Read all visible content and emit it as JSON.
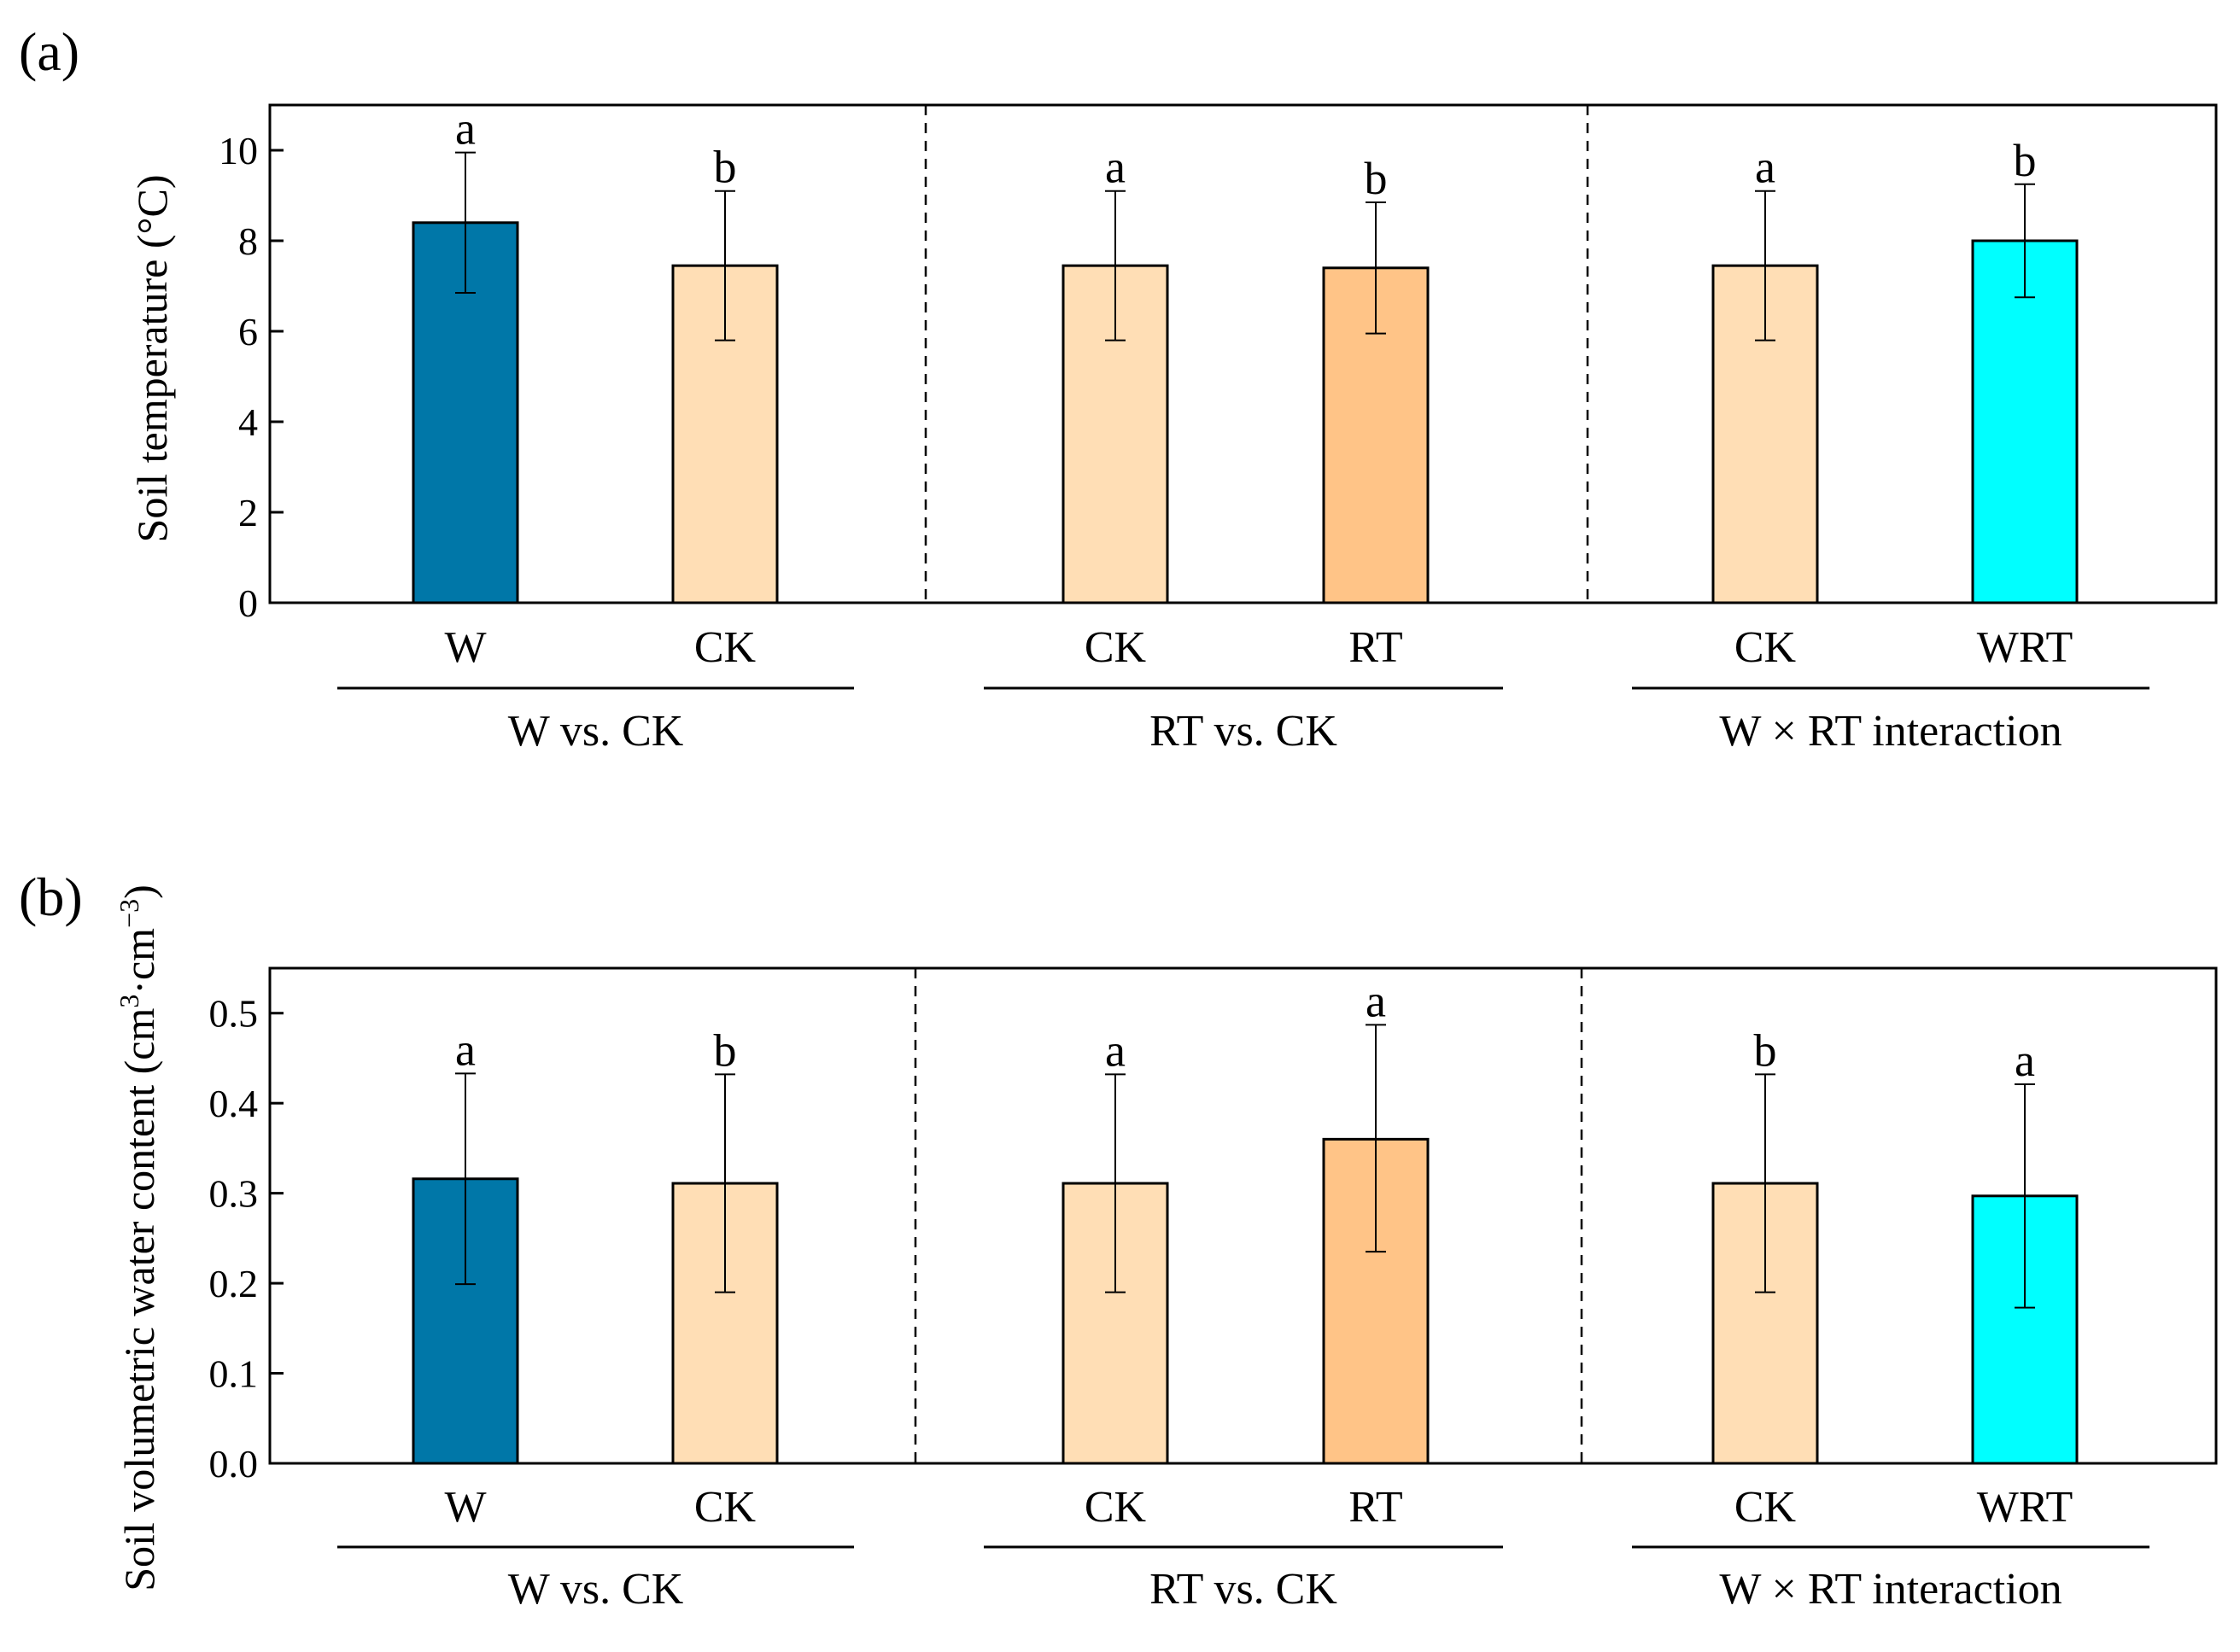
{
  "colors": {
    "W": "#0077A8",
    "CK": "#FFDEB5",
    "RT": "#FFC487",
    "WRT": "#00FFFF",
    "line": "#000000"
  },
  "chart_data": [
    {
      "panel_label": "(a)",
      "type": "bar",
      "ylabel": "Soil temperature (°C)",
      "ylim": [
        0,
        11
      ],
      "yticks": [
        0,
        2,
        4,
        6,
        8,
        10
      ],
      "ytick_labels": [
        "0",
        "2",
        "4",
        "6",
        "8",
        "10"
      ],
      "groups": [
        {
          "name": "W vs. CK",
          "bars": [
            {
              "label": "W",
              "value": 8.4,
              "err_low": 6.85,
              "err_high": 9.95,
              "letter": "a",
              "color_key": "W"
            },
            {
              "label": "CK",
              "value": 7.45,
              "err_low": 5.8,
              "err_high": 9.1,
              "letter": "b",
              "color_key": "CK"
            }
          ]
        },
        {
          "name": "RT vs. CK",
          "bars": [
            {
              "label": "CK",
              "value": 7.45,
              "err_low": 5.8,
              "err_high": 9.1,
              "letter": "a",
              "color_key": "CK"
            },
            {
              "label": "RT",
              "value": 7.4,
              "err_low": 5.95,
              "err_high": 8.85,
              "letter": "b",
              "color_key": "RT"
            }
          ]
        },
        {
          "name": "W × RT interaction",
          "bars": [
            {
              "label": "CK",
              "value": 7.45,
              "err_low": 5.8,
              "err_high": 9.1,
              "letter": "a",
              "color_key": "CK"
            },
            {
              "label": "WRT",
              "value": 8.0,
              "err_low": 6.75,
              "err_high": 9.25,
              "letter": "b",
              "color_key": "WRT"
            }
          ]
        }
      ]
    },
    {
      "panel_label": "(b)",
      "type": "bar",
      "ylabel_main": "Soil volumetric water content (cm",
      "ylabel_sup1": "3",
      "ylabel_mid": "·cm",
      "ylabel_sup2": "−3",
      "ylabel_end": ")",
      "ylim": [
        0,
        0.55
      ],
      "yticks": [
        0,
        0.1,
        0.2,
        0.3,
        0.4,
        0.5
      ],
      "ytick_labels": [
        "0.0",
        "0.1",
        "0.2",
        "0.3",
        "0.4",
        "0.5"
      ],
      "groups": [
        {
          "name": "W vs. CK",
          "bars": [
            {
              "label": "W",
              "value": 0.316,
              "err_low": 0.199,
              "err_high": 0.433,
              "letter": "a",
              "color_key": "W"
            },
            {
              "label": "CK",
              "value": 0.311,
              "err_low": 0.19,
              "err_high": 0.432,
              "letter": "b",
              "color_key": "CK"
            }
          ]
        },
        {
          "name": "RT vs. CK",
          "bars": [
            {
              "label": "CK",
              "value": 0.311,
              "err_low": 0.19,
              "err_high": 0.432,
              "letter": "a",
              "color_key": "CK"
            },
            {
              "label": "RT",
              "value": 0.36,
              "err_low": 0.235,
              "err_high": 0.487,
              "letter": "a",
              "color_key": "RT"
            }
          ]
        },
        {
          "name": "W × RT interaction",
          "bars": [
            {
              "label": "CK",
              "value": 0.311,
              "err_low": 0.19,
              "err_high": 0.432,
              "letter": "b",
              "color_key": "CK"
            },
            {
              "label": "WRT",
              "value": 0.297,
              "err_low": 0.173,
              "err_high": 0.421,
              "letter": "a",
              "color_key": "WRT"
            }
          ]
        }
      ]
    }
  ]
}
